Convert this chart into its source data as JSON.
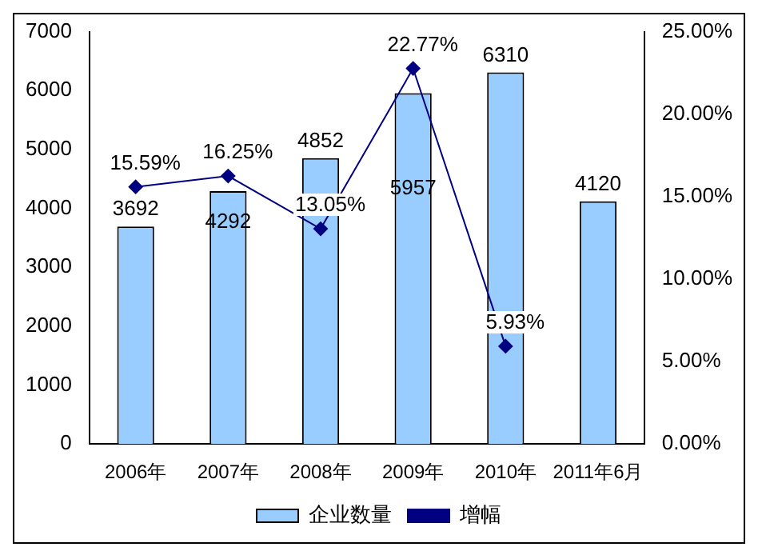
{
  "chart_data": {
    "type": "bar",
    "categories": [
      "2006年",
      "2007年",
      "2008年",
      "2009年",
      "2010年",
      "2011年6月"
    ],
    "series": [
      {
        "name": "企业数量",
        "type": "bar",
        "color": "#99ccff",
        "values": [
          3692,
          4292,
          4852,
          5957,
          6310,
          4120
        ],
        "value_labels": [
          "3692",
          "4292",
          "4852",
          "5957",
          "6310",
          "4120"
        ]
      },
      {
        "name": "增幅",
        "type": "line",
        "axis": "y2",
        "color": "#000080",
        "marker": "diamond",
        "values": [
          15.59,
          16.25,
          13.05,
          22.77,
          5.93,
          null
        ],
        "value_labels": [
          "15.59%",
          "16.25%",
          "13.05%",
          "22.77%",
          "5.93%",
          null
        ]
      }
    ],
    "ylim": [
      0,
      7000
    ],
    "yticks": [
      0,
      1000,
      2000,
      3000,
      4000,
      5000,
      6000,
      7000
    ],
    "y2lim": [
      0,
      25
    ],
    "y2ticks": [
      {
        "value": 0,
        "label": "0.00%"
      },
      {
        "value": 5,
        "label": "5.00%"
      },
      {
        "value": 10,
        "label": "10.00%"
      },
      {
        "value": 15,
        "label": "15.00%"
      },
      {
        "value": 20,
        "label": "20.00%"
      },
      {
        "value": 25,
        "label": "25.00%"
      }
    ],
    "grid": false,
    "legend": "bottom"
  }
}
